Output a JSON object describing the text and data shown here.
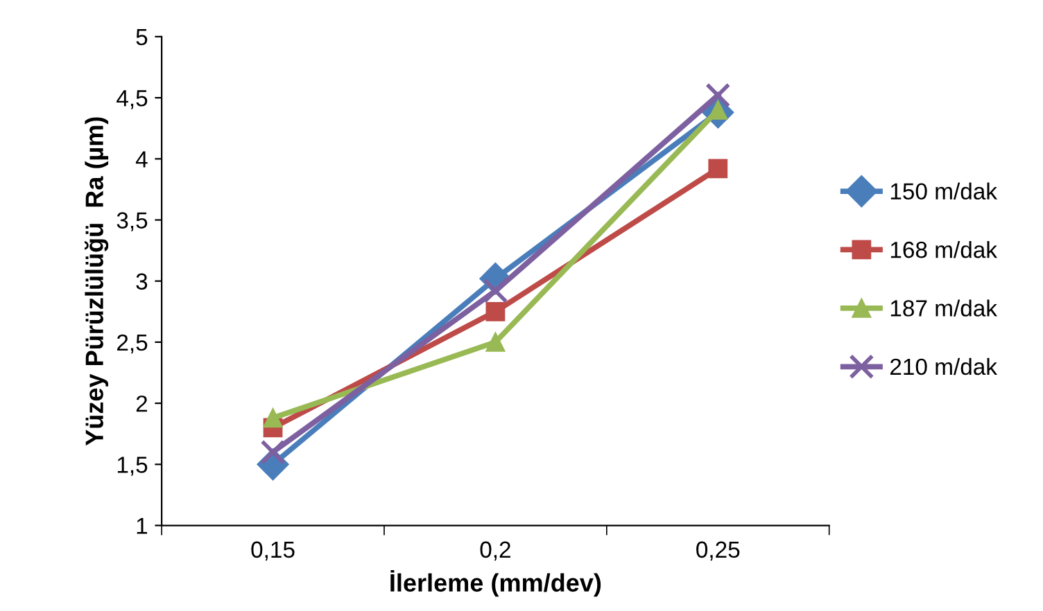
{
  "chart_data": {
    "type": "line",
    "xlabel": "İlerleme (mm/dev)",
    "ylabel": "Yüzey Pürüzlülüğü  Ra (µm)",
    "categories": [
      "0,15",
      "0,2",
      "0,25"
    ],
    "series": [
      {
        "name": "150 m/dak",
        "color": "#4a7ebb",
        "marker": "diamond",
        "values": [
          1.5,
          3.02,
          4.38
        ]
      },
      {
        "name": "168 m/dak",
        "color": "#be4b48",
        "marker": "square",
        "values": [
          1.8,
          2.75,
          3.92
        ]
      },
      {
        "name": "187 m/dak",
        "color": "#98b954",
        "marker": "triangle",
        "values": [
          1.88,
          2.5,
          4.4
        ]
      },
      {
        "name": "210 m/dak",
        "color": "#7d60a0",
        "marker": "cross",
        "values": [
          1.6,
          2.92,
          4.52
        ]
      }
    ],
    "ylim": [
      1,
      5
    ],
    "yticks": [
      1,
      {
        "value": 1.5,
        "label": "1,5"
      },
      2,
      {
        "value": 2.5,
        "label": "2,5"
      },
      3,
      {
        "value": 3.5,
        "label": "3,5"
      },
      4,
      {
        "value": 4.5,
        "label": "4,5"
      },
      5
    ],
    "grid": false,
    "legend": "right",
    "line_style": "solid"
  }
}
